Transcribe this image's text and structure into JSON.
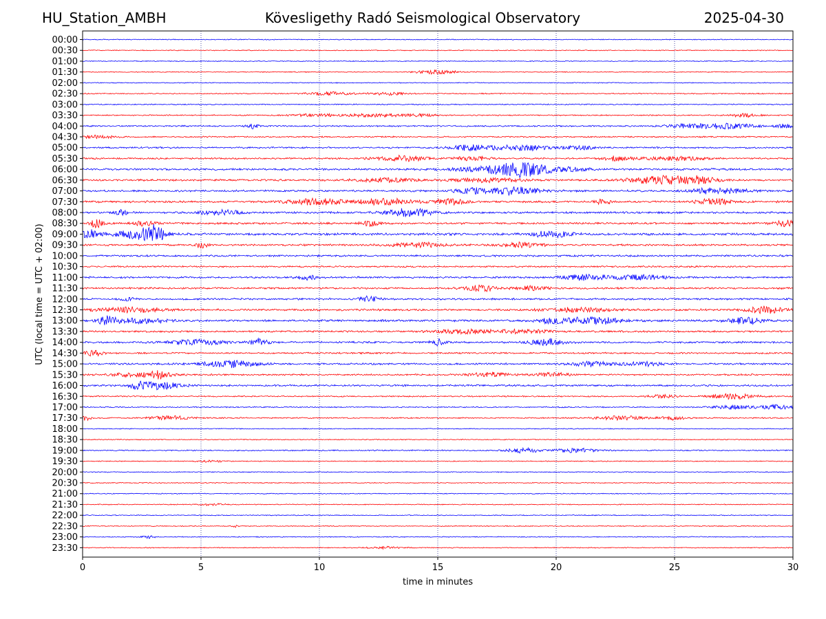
{
  "header": {
    "station": "HU_Station_AMBH",
    "observatory": "Kövesligethy Radó Seismological Observatory",
    "date": "2025-04-30"
  },
  "chart_data": {
    "type": "line",
    "subtype": "helicorder",
    "xlabel": "time in minutes",
    "ylabel": "UTC (local time = UTC + 02:00)",
    "xlim": [
      0,
      30
    ],
    "x_ticks": [
      "0",
      "5",
      "10",
      "15",
      "20",
      "25",
      "30"
    ],
    "grid": "vertical dotted lines every 5 minutes",
    "colors": {
      "even_hour": "#0000ff",
      "half_hour": "#ff0000",
      "grid": "#000080"
    },
    "rows": [
      {
        "label": "00:00",
        "amp": 1
      },
      {
        "label": "00:30",
        "amp": 1
      },
      {
        "label": "01:00",
        "amp": 1
      },
      {
        "label": "01:30",
        "amp": 1,
        "bursts": [
          [
            15.0,
            0.6,
            4
          ]
        ]
      },
      {
        "label": "02:00",
        "amp": 1
      },
      {
        "label": "02:30",
        "amp": 1.2,
        "bursts": [
          [
            10.5,
            0.7,
            3
          ],
          [
            13,
            0.5,
            2.5
          ]
        ]
      },
      {
        "label": "03:00",
        "amp": 1.2
      },
      {
        "label": "03:30",
        "amp": 1.3,
        "bursts": [
          [
            9.8,
            0.8,
            2
          ],
          [
            12.3,
            0.8,
            2.5
          ],
          [
            14.2,
            0.5,
            2
          ],
          [
            28.0,
            0.4,
            3
          ]
        ]
      },
      {
        "label": "04:00",
        "amp": 1.6,
        "bursts": [
          [
            7.2,
            0.2,
            3
          ],
          [
            25.8,
            0.8,
            3
          ],
          [
            27.5,
            0.8,
            2.5
          ],
          [
            29.8,
            0.3,
            3
          ]
        ]
      },
      {
        "label": "04:30",
        "amp": 1.5,
        "bursts": [
          [
            0.5,
            0.8,
            2
          ]
        ]
      },
      {
        "label": "05:00",
        "amp": 1.8,
        "bursts": [
          [
            16.5,
            0.7,
            3.5
          ],
          [
            18.6,
            0.8,
            3
          ],
          [
            21,
            0.6,
            2
          ]
        ]
      },
      {
        "label": "05:30",
        "amp": 1.8,
        "bursts": [
          [
            13.5,
            0.8,
            3
          ],
          [
            16.5,
            0.5,
            2.5
          ],
          [
            22.5,
            0.4,
            2.5
          ],
          [
            25,
            1,
            2
          ]
        ]
      },
      {
        "label": "06:00",
        "amp": 2.2,
        "bursts": [
          [
            17.5,
            1.2,
            3
          ],
          [
            18.5,
            0.6,
            4.5
          ],
          [
            20,
            1,
            2
          ]
        ]
      },
      {
        "label": "06:30",
        "amp": 2.2,
        "bursts": [
          [
            12.8,
            0.8,
            2
          ],
          [
            17,
            1,
            2
          ],
          [
            24.5,
            1,
            3.5
          ],
          [
            26,
            0.6,
            2.5
          ]
        ]
      },
      {
        "label": "07:00",
        "amp": 2.2,
        "bursts": [
          [
            16.3,
            0.5,
            2.5
          ],
          [
            18.2,
            0.8,
            3.5
          ],
          [
            26.8,
            0.8,
            3
          ]
        ]
      },
      {
        "label": "07:30",
        "amp": 2.2,
        "bursts": [
          [
            9.8,
            0.8,
            3
          ],
          [
            12.8,
            0.8,
            3
          ],
          [
            15.5,
            0.5,
            2.5
          ],
          [
            22,
            0.2,
            3
          ],
          [
            26.7,
            0.5,
            3
          ]
        ]
      },
      {
        "label": "08:00",
        "amp": 2.2,
        "bursts": [
          [
            1.6,
            0.2,
            3
          ],
          [
            5.8,
            0.6,
            2.5
          ],
          [
            13.8,
            0.7,
            4
          ]
        ]
      },
      {
        "label": "08:30",
        "amp": 2.2,
        "bursts": [
          [
            0.6,
            0.2,
            4
          ],
          [
            2.6,
            0.3,
            2.5
          ],
          [
            12.2,
            0.3,
            2.5
          ],
          [
            29.8,
            0.4,
            3
          ]
        ]
      },
      {
        "label": "09:00",
        "amp": 2.5,
        "bursts": [
          [
            0.3,
            0.4,
            3.5
          ],
          [
            2.6,
            0.7,
            4.5
          ],
          [
            3.1,
            0.2,
            5
          ],
          [
            19.8,
            0.6,
            2.5
          ]
        ]
      },
      {
        "label": "09:30",
        "amp": 2,
        "bursts": [
          [
            5.0,
            0.2,
            3
          ],
          [
            14.2,
            0.8,
            2.5
          ],
          [
            18.5,
            0.6,
            2.5
          ]
        ]
      },
      {
        "label": "10:00",
        "amp": 2
      },
      {
        "label": "10:30",
        "amp": 1.8
      },
      {
        "label": "11:00",
        "amp": 2,
        "bursts": [
          [
            9.5,
            0.3,
            2.5
          ],
          [
            21.3,
            0.7,
            3
          ],
          [
            23.5,
            0.8,
            2.5
          ]
        ]
      },
      {
        "label": "11:30",
        "amp": 2,
        "bursts": [
          [
            16.8,
            0.5,
            3
          ],
          [
            19,
            0.6,
            2
          ]
        ]
      },
      {
        "label": "12:00",
        "amp": 2,
        "bursts": [
          [
            1.9,
            0.2,
            2
          ],
          [
            12.1,
            0.3,
            3
          ]
        ]
      },
      {
        "label": "12:30",
        "amp": 2.2,
        "bursts": [
          [
            2.0,
            1,
            2.5
          ],
          [
            21,
            1,
            2
          ],
          [
            28.8,
            0.5,
            3.5
          ]
        ]
      },
      {
        "label": "13:00",
        "amp": 2.3,
        "bursts": [
          [
            1.0,
            0.3,
            3.5
          ],
          [
            2.5,
            0.8,
            2.5
          ],
          [
            20,
            0.6,
            2.5
          ],
          [
            21.7,
            0.7,
            3
          ],
          [
            28,
            0.5,
            3
          ]
        ]
      },
      {
        "label": "13:30",
        "amp": 2,
        "bursts": [
          [
            16,
            0.8,
            2.5
          ],
          [
            18.5,
            0.8,
            2
          ]
        ]
      },
      {
        "label": "14:00",
        "amp": 2.1,
        "bursts": [
          [
            4.8,
            0.8,
            2.5
          ],
          [
            7.5,
            0.3,
            3.5
          ],
          [
            15,
            0.2,
            3.5
          ],
          [
            19.6,
            0.5,
            3.5
          ]
        ]
      },
      {
        "label": "14:30",
        "amp": 1.8,
        "bursts": [
          [
            0.5,
            0.3,
            3
          ]
        ]
      },
      {
        "label": "15:00",
        "amp": 2,
        "bursts": [
          [
            6.3,
            0.8,
            3.5
          ],
          [
            21.5,
            0.6,
            2.5
          ],
          [
            23.7,
            0.6,
            2
          ]
        ]
      },
      {
        "label": "15:30",
        "amp": 1.8,
        "bursts": [
          [
            2.5,
            0.8,
            3
          ],
          [
            3.3,
            0.2,
            4
          ],
          [
            17.2,
            0.6,
            2.5
          ],
          [
            19.8,
            0.5,
            2.5
          ]
        ]
      },
      {
        "label": "16:00",
        "amp": 2,
        "bursts": [
          [
            2.4,
            0.3,
            3.5
          ],
          [
            3.3,
            0.6,
            3.5
          ]
        ]
      },
      {
        "label": "16:30",
        "amp": 1.4,
        "bursts": [
          [
            24.5,
            0.4,
            2.5
          ],
          [
            27.5,
            0.7,
            4
          ]
        ]
      },
      {
        "label": "17:00",
        "amp": 1.3,
        "bursts": [
          [
            27.5,
            0.6,
            3
          ],
          [
            29.3,
            0.5,
            3.5
          ]
        ]
      },
      {
        "label": "17:30",
        "amp": 1.4,
        "bursts": [
          [
            0.1,
            0.2,
            3.5
          ],
          [
            3.7,
            0.6,
            3
          ],
          [
            22.8,
            0.8,
            3
          ],
          [
            25,
            0.4,
            2.5
          ]
        ]
      },
      {
        "label": "18:00",
        "amp": 1
      },
      {
        "label": "18:30",
        "amp": 1
      },
      {
        "label": "19:00",
        "amp": 1.4,
        "bursts": [
          [
            18.6,
            0.5,
            3.5
          ],
          [
            20.8,
            0.6,
            3
          ]
        ]
      },
      {
        "label": "19:30",
        "amp": 1,
        "bursts": [
          [
            5.5,
            0.4,
            2
          ]
        ]
      },
      {
        "label": "20:00",
        "amp": 1
      },
      {
        "label": "20:30",
        "amp": 1
      },
      {
        "label": "21:00",
        "amp": 1
      },
      {
        "label": "21:30",
        "amp": 1,
        "bursts": [
          [
            5.5,
            0.4,
            2
          ]
        ]
      },
      {
        "label": "22:00",
        "amp": 1
      },
      {
        "label": "22:30",
        "amp": 1,
        "bursts": [
          [
            6.4,
            0.1,
            3
          ]
        ]
      },
      {
        "label": "23:00",
        "amp": 1,
        "bursts": [
          [
            2.8,
            0.2,
            2.5
          ]
        ]
      },
      {
        "label": "23:30",
        "amp": 1,
        "bursts": [
          [
            12.8,
            0.6,
            2
          ]
        ]
      }
    ]
  }
}
